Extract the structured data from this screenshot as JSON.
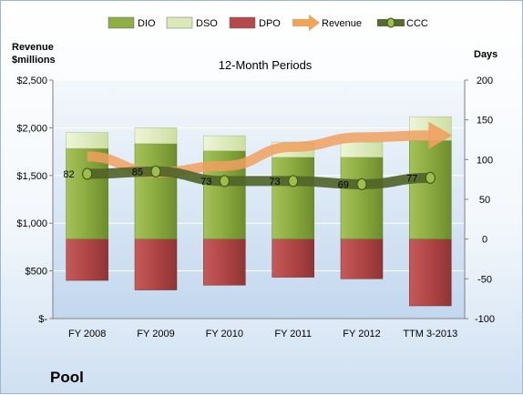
{
  "company": "Pool",
  "chart_data": {
    "type": "bar",
    "title": "12-Month Periods",
    "categories": [
      "FY 2008",
      "FY 2009",
      "FY 2010",
      "FY 2011",
      "FY 2012",
      "TTM 3-2013"
    ],
    "left_axis": {
      "label_line1": "Revenue",
      "label_line2": "$millions",
      "range": [
        0,
        2500
      ],
      "ticks": [
        0,
        500,
        1000,
        1500,
        2000,
        2500
      ],
      "tick_labels": [
        "$-",
        "$500",
        "$1,000",
        "$1,500",
        "$2,000",
        "$2,500"
      ]
    },
    "right_axis": {
      "label": "Days",
      "range": [
        -100,
        200
      ],
      "ticks": [
        -100,
        -50,
        0,
        50,
        100,
        150,
        200
      ],
      "tick_labels": [
        "-100",
        "-50",
        "0",
        "50",
        "100",
        "150",
        "200"
      ]
    },
    "legend_position": "top",
    "series": [
      {
        "name": "DIO",
        "axis": "right",
        "kind": "stacked-bar",
        "color": "#8fae46",
        "values": [
          114,
          120,
          111,
          103,
          103,
          124
        ]
      },
      {
        "name": "DSO",
        "axis": "right",
        "kind": "stacked-bar",
        "color": "#dbe8b8",
        "values": [
          20,
          20,
          19,
          19,
          19,
          30
        ]
      },
      {
        "name": "DPO",
        "axis": "right",
        "kind": "bar-negative",
        "color": "#b44a4a",
        "values": [
          -52,
          -64,
          -58,
          -48,
          -50,
          -84
        ]
      },
      {
        "name": "Revenue",
        "axis": "left",
        "kind": "arrow-line",
        "color": "#f2a35a",
        "values": [
          1700,
          1530,
          1600,
          1800,
          1900,
          1920
        ]
      },
      {
        "name": "CCC",
        "axis": "right",
        "kind": "line",
        "color": "#556b2f",
        "values": [
          82,
          85,
          73,
          73,
          69,
          77
        ],
        "labels": [
          "82",
          "85",
          "73",
          "73",
          "69",
          "77"
        ]
      }
    ]
  }
}
